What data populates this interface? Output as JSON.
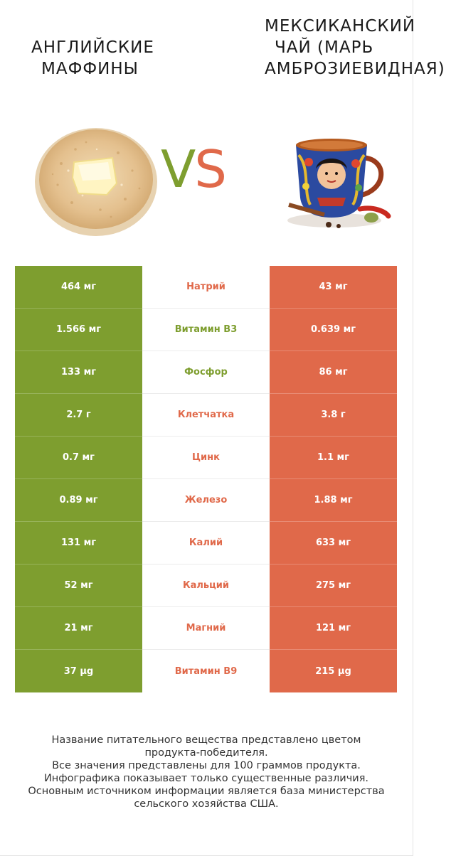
{
  "left_product": {
    "title_line1": "АНГЛИЙСКИЕ",
    "title_line2": "МАФФИНЫ",
    "image_icon": "english-muffin-image"
  },
  "right_product": {
    "title_line1": "МЕКСИКАНСКИЙ",
    "title_line2": "ЧАЙ (МАРЬ",
    "title_line3": "АМБРОЗИЕВИДНАЯ)",
    "image_icon": "tea-cup-image"
  },
  "vs": {
    "v": "V",
    "s": "S"
  },
  "colors": {
    "left": "#7e9e2f",
    "right": "#e0694a"
  },
  "rows": [
    {
      "left": "464 мг",
      "name": "Натрий",
      "right": "43 мг",
      "winner": "right"
    },
    {
      "left": "1.566 мг",
      "name": "Витамин B3",
      "right": "0.639 мг",
      "winner": "left"
    },
    {
      "left": "133 мг",
      "name": "Фосфор",
      "right": "86 мг",
      "winner": "left"
    },
    {
      "left": "2.7 г",
      "name": "Клетчатка",
      "right": "3.8 г",
      "winner": "right"
    },
    {
      "left": "0.7 мг",
      "name": "Цинк",
      "right": "1.1 мг",
      "winner": "right"
    },
    {
      "left": "0.89 мг",
      "name": "Железо",
      "right": "1.88 мг",
      "winner": "right"
    },
    {
      "left": "131 мг",
      "name": "Калий",
      "right": "633 мг",
      "winner": "right"
    },
    {
      "left": "52 мг",
      "name": "Кальций",
      "right": "275 мг",
      "winner": "right"
    },
    {
      "left": "21 мг",
      "name": "Магний",
      "right": "121 мг",
      "winner": "right"
    },
    {
      "left": "37 µg",
      "name": "Витамин B9",
      "right": "215 µg",
      "winner": "right"
    }
  ],
  "footer": [
    "Название питательного вещества представлено цветом",
    "продукта-победителя.",
    "Все значения представлены для 100 граммов продукта.",
    "Инфографика показывает только существенные различия.",
    "Основным источником информации является база министерства",
    "сельского хозяйства США."
  ]
}
